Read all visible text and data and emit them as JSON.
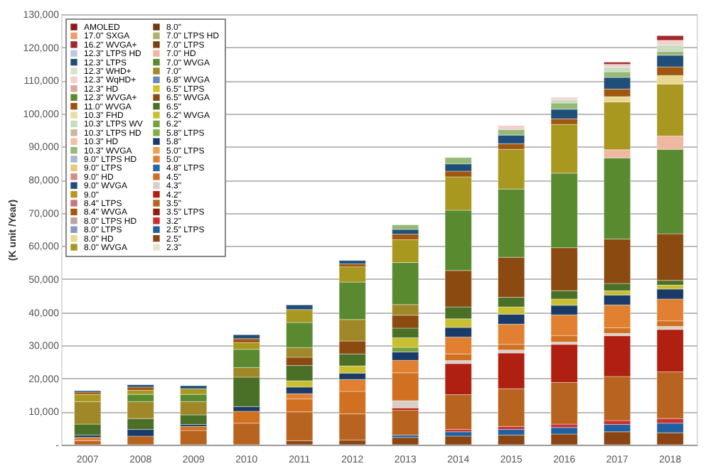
{
  "chart_data": {
    "type": "bar",
    "stacked": true,
    "ylabel": "(K unit /Year)",
    "categories": [
      "2007",
      "2008",
      "2009",
      "2010",
      "2011",
      "2012",
      "2013",
      "2014",
      "2015",
      "2016",
      "2017",
      "2018"
    ],
    "ylim": [
      0,
      130000
    ],
    "yticks": [
      {
        "value": 0,
        "label": "-"
      },
      {
        "value": 10000,
        "label": "10,000"
      },
      {
        "value": 20000,
        "label": "20,000"
      },
      {
        "value": 30000,
        "label": "30,000"
      },
      {
        "value": 40000,
        "label": "40,000"
      },
      {
        "value": 50000,
        "label": "50,000"
      },
      {
        "value": 60000,
        "label": "60,000"
      },
      {
        "value": 70000,
        "label": "70,000"
      },
      {
        "value": 80000,
        "label": "80,000"
      },
      {
        "value": 90000,
        "label": "90,000"
      },
      {
        "value": 100000,
        "label": "100,000"
      },
      {
        "value": 110000,
        "label": "110,000"
      },
      {
        "value": 120000,
        "label": "120,000"
      },
      {
        "value": 130000,
        "label": "130,000"
      }
    ],
    "grid": "y",
    "legend": "top left",
    "series": [
      {
        "name": "2.3\"",
        "color": "#e8e4c8",
        "values": [
          null,
          null,
          null,
          null,
          null,
          null,
          null,
          null,
          null,
          null,
          null,
          null
        ]
      },
      {
        "name": "2.5\"",
        "color": "#8b4513",
        "values": [
          null,
          null,
          null,
          null,
          1200,
          1400,
          2200,
          2600,
          2900,
          3200,
          3900,
          3600
        ]
      },
      {
        "name": "2.5\" LTPS",
        "color": "#2060a0",
        "values": [
          null,
          null,
          null,
          null,
          null,
          null,
          700,
          1300,
          1700,
          2000,
          2200,
          2900
        ]
      },
      {
        "name": "3.2\"",
        "color": "#c83030",
        "values": [
          null,
          null,
          null,
          null,
          null,
          null,
          null,
          700,
          900,
          1000,
          1200,
          1400
        ]
      },
      {
        "name": "3.5\" LTPS",
        "color": "#8b2010",
        "values": [
          null,
          null,
          null,
          null,
          null,
          null,
          null,
          null,
          null,
          null,
          null,
          null
        ]
      },
      {
        "name": "3.5\"",
        "color": "#b86420",
        "values": [
          1200,
          2600,
          4300,
          6500,
          8700,
          7900,
          7500,
          10500,
          11400,
          12600,
          13300,
          14100
        ]
      },
      {
        "name": "4.2\"",
        "color": "#b02010",
        "values": [
          null,
          null,
          null,
          null,
          null,
          null,
          700,
          9400,
          10800,
          11500,
          12300,
          12800
        ]
      },
      {
        "name": "4.3\"",
        "color": "#d8d0c8",
        "values": [
          null,
          null,
          null,
          null,
          null,
          null,
          2200,
          900,
          900,
          700,
          700,
          900
        ]
      },
      {
        "name": "4.5\"",
        "color": "#d07020",
        "values": [
          null,
          null,
          1200,
          3600,
          3900,
          6800,
          8400,
          2000,
          1700,
          1900,
          1700,
          1700
        ]
      },
      {
        "name": "4.8\" LTPS",
        "color": "#2868a8",
        "values": [
          null,
          null,
          null,
          null,
          null,
          null,
          null,
          null,
          null,
          null,
          null,
          null
        ]
      },
      {
        "name": "5.0\"",
        "color": "#e08030",
        "values": [
          1000,
          null,
          null,
          null,
          1600,
          3600,
          3800,
          5100,
          6100,
          6300,
          6900,
          6600
        ]
      },
      {
        "name": "5.0\" LTPS",
        "color": "#f0a050",
        "values": [
          null,
          null,
          null,
          null,
          null,
          null,
          null,
          null,
          null,
          null,
          null,
          null
        ]
      },
      {
        "name": "5.8\"",
        "color": "#1a3a6a",
        "values": [
          700,
          2000,
          600,
          1400,
          2000,
          1900,
          2500,
          2900,
          3000,
          2900,
          3000,
          3000
        ]
      },
      {
        "name": "5.8\" LTPS",
        "color": "#80b040",
        "values": [
          null,
          null,
          null,
          null,
          null,
          null,
          null,
          null,
          null,
          null,
          null,
          null
        ]
      },
      {
        "name": "6.2\"",
        "color": "#78a040",
        "values": [
          null,
          null,
          null,
          null,
          null,
          null,
          1400,
          null,
          null,
          null,
          null,
          null
        ]
      },
      {
        "name": "6.2\" WVGA",
        "color": "#c8c030",
        "values": [
          null,
          null,
          null,
          null,
          1900,
          2200,
          2900,
          2600,
          2200,
          1900,
          1300,
          1200
        ]
      },
      {
        "name": "6.5\"",
        "color": "#4a7028",
        "values": [
          3300,
          3300,
          2900,
          8900,
          4600,
          3600,
          2900,
          3600,
          2900,
          2500,
          2200,
          1400
        ]
      },
      {
        "name": "6.5\" WVGA",
        "color": "#8b4a10",
        "values": [
          null,
          null,
          null,
          null,
          2500,
          3900,
          3900,
          11000,
          12100,
          13000,
          13400,
          14100
        ]
      },
      {
        "name": "6.5\" LTPS",
        "color": "#d8c020",
        "values": [
          null,
          null,
          null,
          null,
          null,
          null,
          null,
          null,
          null,
          null,
          null,
          null
        ]
      },
      {
        "name": "6.8\" WVGA",
        "color": "#6888b8",
        "values": [
          null,
          null,
          null,
          null,
          null,
          null,
          null,
          null,
          null,
          null,
          null,
          null
        ]
      },
      {
        "name": "7.0\"",
        "color": "#a08828",
        "values": [
          6800,
          5100,
          4000,
          2900,
          2900,
          6500,
          3200,
          null,
          null,
          null,
          null,
          null
        ]
      },
      {
        "name": "7.0\" WVGA",
        "color": "#5a8a30",
        "values": [
          null,
          2200,
          2200,
          5500,
          7600,
          11300,
          12700,
          18200,
          20600,
          22500,
          24500,
          25500
        ]
      },
      {
        "name": "7.0\" HD",
        "color": "#f0b8a0",
        "values": [
          null,
          null,
          null,
          null,
          null,
          null,
          null,
          null,
          null,
          null,
          2500,
          4000
        ]
      },
      {
        "name": "7.0\" LTPS",
        "color": "#7a4010",
        "values": [
          null,
          null,
          null,
          null,
          null,
          null,
          null,
          null,
          null,
          null,
          null,
          null
        ]
      },
      {
        "name": "7.0\" LTPS HD",
        "color": "#b0b070",
        "values": [
          null,
          null,
          null,
          null,
          null,
          null,
          null,
          null,
          null,
          null,
          null,
          null
        ]
      },
      {
        "name": "8.0\"",
        "color": "#6a3a10",
        "values": [
          null,
          null,
          null,
          null,
          null,
          null,
          null,
          null,
          null,
          null,
          null,
          null
        ]
      },
      {
        "name": "8.0\" WVGA",
        "color": "#a89820",
        "values": [
          2200,
          1200,
          1700,
          2000,
          3900,
          4600,
          6900,
          10100,
          12000,
          14700,
          14400,
          15700
        ]
      },
      {
        "name": "8.0\" HD",
        "color": "#e8d890",
        "values": [
          null,
          null,
          null,
          null,
          null,
          null,
          null,
          null,
          null,
          null,
          1600,
          2600
        ]
      },
      {
        "name": "8.0\" LTPS",
        "color": "#8898c0",
        "values": [
          null,
          null,
          null,
          null,
          null,
          null,
          null,
          null,
          null,
          null,
          null,
          null
        ]
      },
      {
        "name": "8.0\" LTPS HD",
        "color": "#c0a0a0",
        "values": [
          null,
          null,
          null,
          null,
          null,
          null,
          null,
          null,
          null,
          null,
          null,
          null
        ]
      },
      {
        "name": "8.4\" WVGA",
        "color": "#a05810",
        "values": [
          700,
          1000,
          null,
          1200,
          null,
          900,
          1700,
          1700,
          1700,
          1700,
          2300,
          2600
        ]
      },
      {
        "name": "8.4\" LTPS",
        "color": "#c87878",
        "values": [
          null,
          null,
          null,
          null,
          null,
          null,
          null,
          null,
          null,
          null,
          null,
          null
        ]
      },
      {
        "name": "9.0\"",
        "color": "#b89820",
        "values": [
          null,
          null,
          null,
          null,
          null,
          null,
          null,
          null,
          null,
          null,
          null,
          null
        ]
      },
      {
        "name": "9.0\" WVGA",
        "color": "#1f4e79",
        "values": [
          400,
          700,
          900,
          1200,
          1400,
          1000,
          1400,
          2200,
          2600,
          2900,
          3500,
          3500
        ]
      },
      {
        "name": "9.0\" HD",
        "color": "#d09088",
        "values": [
          null,
          null,
          null,
          null,
          null,
          null,
          null,
          null,
          null,
          null,
          null,
          null
        ]
      },
      {
        "name": "9.0\" LTPS",
        "color": "#e8c878",
        "values": [
          null,
          null,
          null,
          null,
          null,
          null,
          null,
          null,
          null,
          null,
          null,
          null
        ]
      },
      {
        "name": "9.0\" LTPS HD",
        "color": "#a8b8d0",
        "values": [
          null,
          null,
          null,
          null,
          null,
          null,
          null,
          null,
          null,
          null,
          null,
          null
        ]
      },
      {
        "name": "10.3\" WVGA",
        "color": "#98b878",
        "values": [
          null,
          null,
          null,
          null,
          null,
          null,
          1400,
          1900,
          1700,
          1900,
          1700,
          1200
        ]
      },
      {
        "name": "10.3\" HD",
        "color": "#f0c0a8",
        "values": [
          null,
          null,
          null,
          null,
          null,
          null,
          null,
          null,
          null,
          null,
          null,
          null
        ]
      },
      {
        "name": "10.3\" LTPS HD",
        "color": "#c8b8a0",
        "values": [
          null,
          null,
          null,
          null,
          null,
          null,
          null,
          null,
          null,
          null,
          null,
          null
        ]
      },
      {
        "name": "10.3\" LTPS WV",
        "color": "#c8dcc0",
        "values": [
          null,
          null,
          null,
          null,
          null,
          null,
          null,
          null,
          null,
          1000,
          1400,
          1900
        ]
      },
      {
        "name": "10.3\" FHD",
        "color": "#e8dca0",
        "values": [
          null,
          null,
          null,
          null,
          null,
          null,
          null,
          null,
          null,
          null,
          null,
          null
        ]
      },
      {
        "name": "11.0\" WVGA",
        "color": "#a05010",
        "values": [
          null,
          null,
          null,
          null,
          null,
          null,
          null,
          null,
          null,
          null,
          null,
          null
        ]
      },
      {
        "name": "12.3\" WVGA+",
        "color": "#5a8a30",
        "values": [
          null,
          null,
          null,
          null,
          null,
          null,
          null,
          null,
          null,
          null,
          null,
          null
        ]
      },
      {
        "name": "12.3\" HD",
        "color": "#d8a8a0",
        "values": [
          null,
          null,
          null,
          null,
          null,
          null,
          null,
          null,
          null,
          null,
          null,
          null
        ]
      },
      {
        "name": "12.3\" WqHD+",
        "color": "#f2d0cc",
        "values": [
          null,
          null,
          null,
          null,
          null,
          null,
          null,
          null,
          1200,
          700,
          900,
          1400
        ]
      },
      {
        "name": "12.3\" WHD+",
        "color": "#d8e4c8",
        "values": [
          null,
          null,
          null,
          null,
          null,
          null,
          null,
          null,
          null,
          null,
          null,
          null
        ]
      },
      {
        "name": "12.3\" LTPS",
        "color": "#1f4e79",
        "values": [
          null,
          null,
          null,
          null,
          null,
          null,
          null,
          null,
          null,
          null,
          null,
          null
        ]
      },
      {
        "name": "12.3\" LTPS HD",
        "color": "#c0c8dc",
        "values": [
          null,
          null,
          null,
          null,
          null,
          null,
          null,
          null,
          null,
          null,
          null,
          null
        ]
      },
      {
        "name": "16.2\" WVGA+",
        "color": "#a0282a",
        "values": [
          null,
          null,
          null,
          null,
          null,
          null,
          null,
          null,
          null,
          null,
          600,
          1400
        ]
      },
      {
        "name": "17.0\" SXGA",
        "color": "#e8a070",
        "values": [
          null,
          null,
          null,
          null,
          null,
          null,
          null,
          null,
          null,
          null,
          null,
          null
        ]
      },
      {
        "name": "AMOLED",
        "color": "#8b1a1a",
        "values": [
          null,
          null,
          null,
          null,
          null,
          null,
          null,
          null,
          null,
          null,
          null,
          null
        ]
      }
    ]
  }
}
